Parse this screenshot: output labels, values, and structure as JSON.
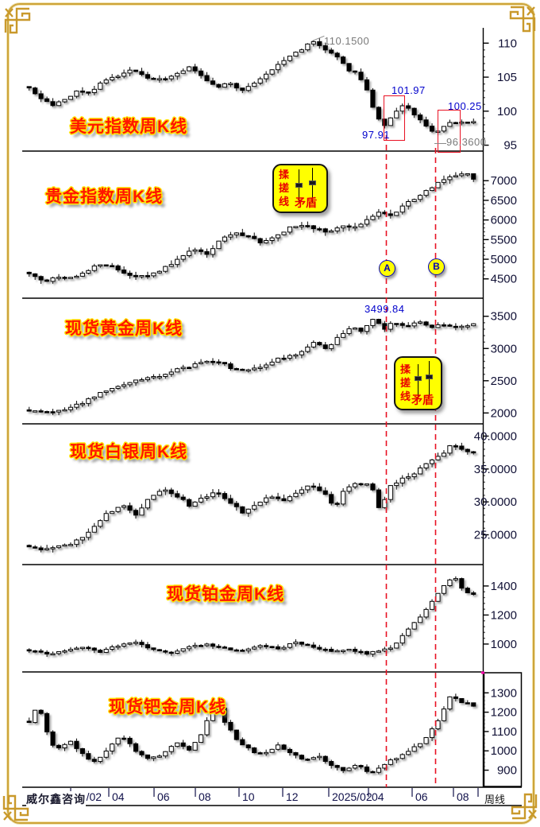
{
  "watermark": "威尔鑫咨询",
  "x_axis": {
    "labels": [
      "24/02",
      "04",
      "06",
      "08",
      "10",
      "12",
      "2025/02",
      "04",
      "06",
      "08"
    ],
    "period_label": "周线"
  },
  "markers": [
    {
      "label": "A"
    },
    {
      "label": "B"
    }
  ],
  "note_box": {
    "chars": [
      "揉",
      "搓",
      "线"
    ],
    "label": "矛盾"
  },
  "colors": {
    "title_red": "#ff1500",
    "title_outline": "#ffe400",
    "annotation_blue": "#0000cc",
    "annotation_gray": "#7a7a7a",
    "highlight_red": "#e81123",
    "note_bg": "#ffff00",
    "frame_gold": "#cda43a",
    "candle_black": "#000000",
    "candle_white": "#ffffff"
  },
  "chart_data": [
    {
      "type": "candlestick",
      "title": "美元指数周K线",
      "ylim": [
        94.6,
        111.9
      ],
      "yticks": [
        [
          110,
          "110"
        ],
        [
          105,
          "105"
        ],
        [
          100,
          "100"
        ],
        [
          95,
          "95"
        ]
      ],
      "keypoints": [
        [
          0,
          103.3
        ],
        [
          0.02,
          102.0
        ],
        [
          0.05,
          100.9
        ],
        [
          0.08,
          101.8
        ],
        [
          0.11,
          103.0
        ],
        [
          0.13,
          102.5
        ],
        [
          0.17,
          104.5
        ],
        [
          0.2,
          105.3
        ],
        [
          0.23,
          106.2
        ],
        [
          0.26,
          105.0
        ],
        [
          0.3,
          104.6
        ],
        [
          0.33,
          105.6
        ],
        [
          0.36,
          106.4
        ],
        [
          0.39,
          105.0
        ],
        [
          0.42,
          103.4
        ],
        [
          0.45,
          104.1
        ],
        [
          0.48,
          103.1
        ],
        [
          0.51,
          104.3
        ],
        [
          0.54,
          106.0
        ],
        [
          0.57,
          107.2
        ],
        [
          0.6,
          108.6
        ],
        [
          0.63,
          109.9
        ],
        [
          0.645,
          110.15
        ],
        [
          0.67,
          109.0
        ],
        [
          0.7,
          107.5
        ],
        [
          0.72,
          106.0
        ],
        [
          0.74,
          105.6
        ],
        [
          0.76,
          103.0
        ],
        [
          0.775,
          100.2
        ],
        [
          0.79,
          98.4
        ],
        [
          0.8,
          98.0
        ],
        [
          0.815,
          99.0
        ],
        [
          0.83,
          100.3
        ],
        [
          0.845,
          101.3
        ],
        [
          0.86,
          99.8
        ],
        [
          0.88,
          98.6
        ],
        [
          0.9,
          97.3
        ],
        [
          0.915,
          96.8
        ],
        [
          0.93,
          97.7
        ],
        [
          0.95,
          98.3
        ],
        [
          0.97,
          98.6
        ],
        [
          1,
          98.4
        ]
      ],
      "annotations": [
        {
          "text": "110.1500",
          "color": "#7a7a7a"
        },
        {
          "text": "101.97",
          "color": "#0000cc"
        },
        {
          "text": "97.91",
          "color": "#0000cc"
        },
        {
          "text": "100.25",
          "color": "#0000cc"
        },
        {
          "text": "96.3600",
          "color": "#7a7a7a"
        }
      ]
    },
    {
      "type": "candlestick",
      "title": "贵金指数周K线",
      "ylim": [
        4150,
        7450
      ],
      "yticks": [
        [
          7000,
          "7000"
        ],
        [
          6500,
          "6500"
        ],
        [
          6000,
          "6000"
        ],
        [
          5500,
          "5500"
        ],
        [
          5000,
          "5000"
        ],
        [
          4500,
          "4500"
        ]
      ],
      "keypoints": [
        [
          0,
          4600
        ],
        [
          0.04,
          4450
        ],
        [
          0.07,
          4560
        ],
        [
          0.1,
          4500
        ],
        [
          0.13,
          4700
        ],
        [
          0.16,
          4870
        ],
        [
          0.19,
          4800
        ],
        [
          0.22,
          4640
        ],
        [
          0.25,
          4540
        ],
        [
          0.28,
          4620
        ],
        [
          0.31,
          4820
        ],
        [
          0.34,
          5020
        ],
        [
          0.37,
          5260
        ],
        [
          0.4,
          5140
        ],
        [
          0.43,
          5500
        ],
        [
          0.46,
          5700
        ],
        [
          0.49,
          5600
        ],
        [
          0.52,
          5440
        ],
        [
          0.55,
          5560
        ],
        [
          0.58,
          5760
        ],
        [
          0.61,
          5900
        ],
        [
          0.64,
          5790
        ],
        [
          0.67,
          5700
        ],
        [
          0.7,
          5860
        ],
        [
          0.73,
          5790
        ],
        [
          0.76,
          6010
        ],
        [
          0.79,
          6200
        ],
        [
          0.82,
          6090
        ],
        [
          0.84,
          6350
        ],
        [
          0.87,
          6550
        ],
        [
          0.9,
          6800
        ],
        [
          0.93,
          7000
        ],
        [
          0.96,
          7160
        ],
        [
          0.98,
          7220
        ],
        [
          1,
          7050
        ]
      ],
      "annotations": []
    },
    {
      "type": "candlestick",
      "title": "现货黄金周K线",
      "ylim": [
        1930,
        3620
      ],
      "yticks": [
        [
          3500,
          "3500"
        ],
        [
          3000,
          "3000"
        ],
        [
          2500,
          "2500"
        ],
        [
          2000,
          "2000"
        ]
      ],
      "keypoints": [
        [
          0,
          2030
        ],
        [
          0.05,
          2020
        ],
        [
          0.08,
          2045
        ],
        [
          0.12,
          2160
        ],
        [
          0.16,
          2300
        ],
        [
          0.2,
          2400
        ],
        [
          0.24,
          2500
        ],
        [
          0.28,
          2550
        ],
        [
          0.32,
          2650
        ],
        [
          0.36,
          2720
        ],
        [
          0.4,
          2800
        ],
        [
          0.44,
          2750
        ],
        [
          0.47,
          2650
        ],
        [
          0.52,
          2700
        ],
        [
          0.56,
          2850
        ],
        [
          0.6,
          2900
        ],
        [
          0.64,
          3080
        ],
        [
          0.67,
          3000
        ],
        [
          0.7,
          3200
        ],
        [
          0.73,
          3350
        ],
        [
          0.75,
          3250
        ],
        [
          0.77,
          3480
        ],
        [
          0.8,
          3310
        ],
        [
          0.82,
          3420
        ],
        [
          0.85,
          3350
        ],
        [
          0.88,
          3400
        ],
        [
          0.9,
          3330
        ],
        [
          0.93,
          3360
        ],
        [
          0.96,
          3340
        ],
        [
          1,
          3370
        ]
      ],
      "annotations": [
        {
          "text": "3499.84",
          "color": "#0000cc"
        }
      ]
    },
    {
      "type": "candlestick",
      "title": "现货白银周K线",
      "ylim": [
        21.8,
        41.5
      ],
      "yticks": [
        [
          40,
          "40.0000"
        ],
        [
          35,
          "35.0000"
        ],
        [
          30,
          "30.0000"
        ],
        [
          25,
          "25.0000"
        ]
      ],
      "keypoints": [
        [
          0,
          23.2
        ],
        [
          0.03,
          22.6
        ],
        [
          0.06,
          23.0
        ],
        [
          0.09,
          23.5
        ],
        [
          0.12,
          24.5
        ],
        [
          0.15,
          26.5
        ],
        [
          0.18,
          28.5
        ],
        [
          0.21,
          29.5
        ],
        [
          0.24,
          28.0
        ],
        [
          0.27,
          30.5
        ],
        [
          0.3,
          32.0
        ],
        [
          0.33,
          31.0
        ],
        [
          0.36,
          29.5
        ],
        [
          0.39,
          30.5
        ],
        [
          0.42,
          31.5
        ],
        [
          0.45,
          30.0
        ],
        [
          0.48,
          28.5
        ],
        [
          0.51,
          29.5
        ],
        [
          0.54,
          31.0
        ],
        [
          0.57,
          30.0
        ],
        [
          0.6,
          31.5
        ],
        [
          0.63,
          32.5
        ],
        [
          0.66,
          31.5
        ],
        [
          0.69,
          29.0
        ],
        [
          0.71,
          32.0
        ],
        [
          0.74,
          33.0
        ],
        [
          0.77,
          32.5
        ],
        [
          0.79,
          28.5
        ],
        [
          0.81,
          32.5
        ],
        [
          0.84,
          33.5
        ],
        [
          0.87,
          34.5
        ],
        [
          0.9,
          36.0
        ],
        [
          0.93,
          37.2
        ],
        [
          0.95,
          38.6
        ],
        [
          0.97,
          38.2
        ],
        [
          1,
          37.3
        ]
      ],
      "annotations": []
    },
    {
      "type": "candlestick",
      "title": "现货铂金周K线",
      "ylim": [
        890,
        1520
      ],
      "yticks": [
        [
          1400,
          "1400"
        ],
        [
          1200,
          "1200"
        ],
        [
          1000,
          "1000"
        ]
      ],
      "keypoints": [
        [
          0,
          960
        ],
        [
          0.04,
          925
        ],
        [
          0.08,
          950
        ],
        [
          0.12,
          980
        ],
        [
          0.16,
          945
        ],
        [
          0.2,
          990
        ],
        [
          0.24,
          1010
        ],
        [
          0.28,
          960
        ],
        [
          0.32,
          940
        ],
        [
          0.36,
          980
        ],
        [
          0.4,
          1000
        ],
        [
          0.44,
          970
        ],
        [
          0.48,
          950
        ],
        [
          0.52,
          990
        ],
        [
          0.56,
          970
        ],
        [
          0.6,
          1010
        ],
        [
          0.64,
          980
        ],
        [
          0.68,
          950
        ],
        [
          0.72,
          960
        ],
        [
          0.76,
          935
        ],
        [
          0.79,
          950
        ],
        [
          0.82,
          985
        ],
        [
          0.85,
          1090
        ],
        [
          0.88,
          1185
        ],
        [
          0.91,
          1300
        ],
        [
          0.94,
          1435
        ],
        [
          0.96,
          1445
        ],
        [
          0.98,
          1365
        ],
        [
          1,
          1340
        ]
      ],
      "annotations": []
    },
    {
      "type": "candlestick",
      "title": "现货钯金周K线",
      "ylim": [
        820,
        1400
      ],
      "yticks": [
        [
          1300,
          "1300"
        ],
        [
          1200,
          "1200"
        ],
        [
          1100,
          "1100"
        ],
        [
          1000,
          "1000"
        ],
        [
          900,
          "900"
        ]
      ],
      "keypoints": [
        [
          0,
          1150
        ],
        [
          0.02,
          1235
        ],
        [
          0.04,
          1100
        ],
        [
          0.06,
          1000
        ],
        [
          0.09,
          1055
        ],
        [
          0.12,
          980
        ],
        [
          0.15,
          940
        ],
        [
          0.18,
          1020
        ],
        [
          0.21,
          1080
        ],
        [
          0.24,
          1000
        ],
        [
          0.27,
          960
        ],
        [
          0.3,
          985
        ],
        [
          0.33,
          1050
        ],
        [
          0.36,
          1000
        ],
        [
          0.39,
          1100
        ],
        [
          0.42,
          1250
        ],
        [
          0.44,
          1150
        ],
        [
          0.47,
          1050
        ],
        [
          0.5,
          1000
        ],
        [
          0.53,
          980
        ],
        [
          0.56,
          1030
        ],
        [
          0.59,
          990
        ],
        [
          0.62,
          950
        ],
        [
          0.65,
          970
        ],
        [
          0.68,
          930
        ],
        [
          0.71,
          900
        ],
        [
          0.74,
          925
        ],
        [
          0.77,
          880
        ],
        [
          0.8,
          935
        ],
        [
          0.83,
          965
        ],
        [
          0.86,
          1005
        ],
        [
          0.89,
          1055
        ],
        [
          0.92,
          1160
        ],
        [
          0.95,
          1290
        ],
        [
          0.97,
          1255
        ],
        [
          1,
          1235
        ]
      ],
      "annotations": []
    }
  ]
}
